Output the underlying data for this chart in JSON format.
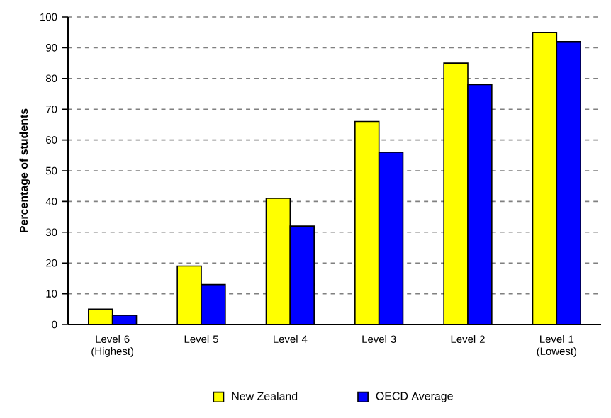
{
  "chart_data": {
    "type": "bar",
    "ylabel": "Percentage of students",
    "categories": [
      "Level 6 (Highest)",
      "Level 5",
      "Level 4",
      "Level 3",
      "Level 2",
      "Level 1 (Lowest)"
    ],
    "series": [
      {
        "name": "New Zealand",
        "color": "#ffff00",
        "values": [
          5,
          19,
          41,
          66,
          85,
          95
        ]
      },
      {
        "name": "OECD Average",
        "color": "#0000ff",
        "values": [
          3,
          13,
          32,
          56,
          78,
          92
        ]
      }
    ],
    "ylim": [
      0,
      100
    ],
    "yticks": [
      0,
      10,
      20,
      30,
      40,
      50,
      60,
      70,
      80,
      90,
      100
    ],
    "grid": "y",
    "legend": "bottom"
  }
}
